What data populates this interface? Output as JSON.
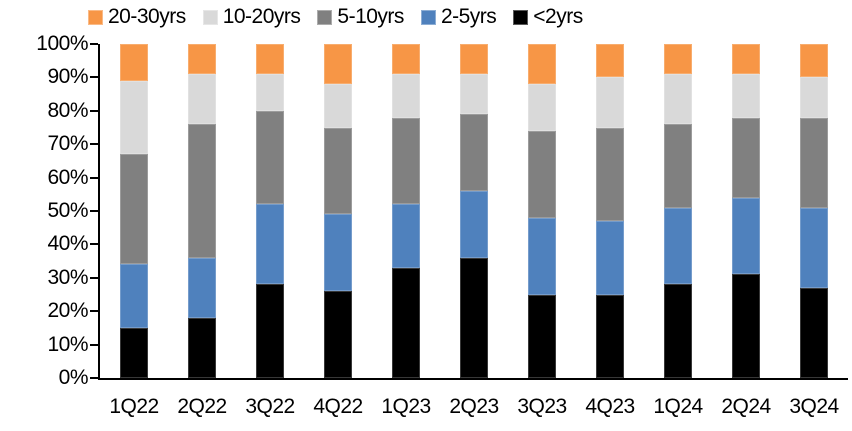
{
  "chart_data": {
    "type": "bar",
    "variant": "stacked-100",
    "title": "",
    "xlabel": "",
    "ylabel": "",
    "ylim": [
      0,
      100
    ],
    "grid": false,
    "legend_position": "top",
    "categories": [
      "1Q22",
      "2Q22",
      "3Q22",
      "4Q22",
      "1Q23",
      "2Q23",
      "3Q23",
      "4Q23",
      "1Q24",
      "2Q24",
      "3Q24"
    ],
    "series": [
      {
        "name": "<2yrs",
        "color": "#000000",
        "values": [
          15,
          18,
          28,
          26,
          33,
          36,
          25,
          25,
          28,
          31,
          27
        ]
      },
      {
        "name": "2-5yrs",
        "color": "#4F81BD",
        "values": [
          19,
          18,
          24,
          23,
          19,
          20,
          23,
          22,
          23,
          23,
          24
        ]
      },
      {
        "name": "5-10yrs",
        "color": "#808080",
        "values": [
          33,
          40,
          28,
          26,
          26,
          23,
          26,
          28,
          25,
          24,
          27
        ]
      },
      {
        "name": "10-20yrs",
        "color": "#D9D9D9",
        "values": [
          22,
          15,
          11,
          13,
          13,
          12,
          14,
          15,
          15,
          13,
          12
        ]
      },
      {
        "name": "20-30yrs",
        "color": "#F79646",
        "values": [
          11,
          9,
          9,
          12,
          9,
          9,
          12,
          10,
          9,
          9,
          10
        ]
      }
    ],
    "legend_items": [
      {
        "label": "20-30yrs",
        "color": "#F79646"
      },
      {
        "label": "10-20yrs",
        "color": "#D9D9D9"
      },
      {
        "label": "5-10yrs",
        "color": "#808080"
      },
      {
        "label": "2-5yrs",
        "color": "#4F81BD"
      },
      {
        "label": "<2yrs",
        "color": "#000000"
      }
    ],
    "y_axis_ticks": [
      "0%",
      "10%",
      "20%",
      "30%",
      "40%",
      "50%",
      "60%",
      "70%",
      "80%",
      "90%",
      "100%"
    ],
    "axis_color": "#000000",
    "background_color": "#FFFFFF"
  }
}
